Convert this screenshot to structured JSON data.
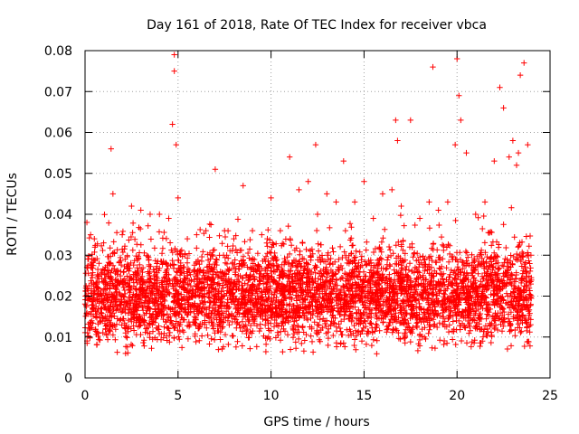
{
  "chart_data": {
    "type": "scatter",
    "title": "Day 161 of 2018, Rate Of TEC Index for receiver vbca",
    "xlabel": "GPS time / hours",
    "ylabel": "ROTI / TECUs",
    "xlim": [
      0,
      25
    ],
    "ylim": [
      0,
      0.08
    ],
    "xticks": [
      0,
      5,
      10,
      15,
      20,
      25
    ],
    "xtick_labels": [
      "0",
      "5",
      "10",
      "15",
      "20",
      "25"
    ],
    "yticks": [
      0,
      0.01,
      0.02,
      0.03,
      0.04,
      0.05,
      0.06,
      0.07,
      0.08
    ],
    "ytick_labels": [
      "0",
      "0.01",
      "0.02",
      "0.03",
      "0.04",
      "0.05",
      "0.06",
      "0.07",
      "0.08"
    ],
    "grid": true,
    "marker": "plus",
    "color": "#ff0000",
    "series": [
      {
        "name": "ROTI",
        "x": [
          0.1,
          0.3,
          0.5,
          1.0,
          1.4,
          1.5,
          2.0,
          2.5,
          3.0,
          3.5,
          4.0,
          4.5,
          4.7,
          4.8,
          4.8,
          4.9,
          5.0,
          5.5,
          6.0,
          6.5,
          7.0,
          7.5,
          8.0,
          8.5,
          9.0,
          9.5,
          10.0,
          10.5,
          11.0,
          11.5,
          12.0,
          12.4,
          12.5,
          13.0,
          13.5,
          13.9,
          14.0,
          14.5,
          15.0,
          15.5,
          16.0,
          16.5,
          16.7,
          16.8,
          17.0,
          17.5,
          18.0,
          18.5,
          18.7,
          19.0,
          19.5,
          19.9,
          20.0,
          20.1,
          20.2,
          20.5,
          21.0,
          21.5,
          22.0,
          22.3,
          22.5,
          22.8,
          23.0,
          23.2,
          23.3,
          23.4,
          23.6,
          23.8
        ],
        "y": [
          0.038,
          0.035,
          0.034,
          0.033,
          0.056,
          0.045,
          0.035,
          0.042,
          0.041,
          0.04,
          0.04,
          0.039,
          0.062,
          0.079,
          0.075,
          0.057,
          0.044,
          0.034,
          0.035,
          0.036,
          0.051,
          0.036,
          0.034,
          0.047,
          0.036,
          0.035,
          0.044,
          0.036,
          0.054,
          0.046,
          0.048,
          0.057,
          0.04,
          0.045,
          0.043,
          0.053,
          0.036,
          0.043,
          0.048,
          0.039,
          0.045,
          0.046,
          0.063,
          0.058,
          0.042,
          0.063,
          0.039,
          0.043,
          0.076,
          0.041,
          0.043,
          0.057,
          0.078,
          0.069,
          0.063,
          0.055,
          0.04,
          0.043,
          0.053,
          0.071,
          0.066,
          0.054,
          0.058,
          0.052,
          0.055,
          0.074,
          0.077,
          0.057
        ]
      }
    ],
    "background_cloud": {
      "note": "dense band of ROTI points across the whole day",
      "x_range": [
        0,
        24
      ],
      "typical_y_range": [
        0.005,
        0.035
      ]
    }
  }
}
